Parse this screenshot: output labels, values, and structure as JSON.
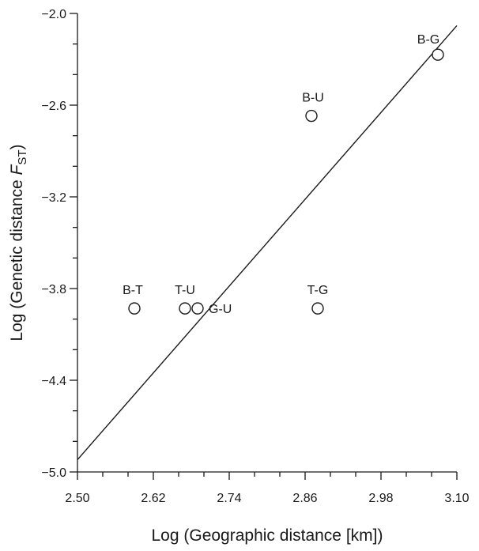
{
  "chart_data": {
    "type": "scatter",
    "xlabel": "Log (Geographic distance [km])",
    "ylabel": {
      "prefix": "Log (Genetic distance ",
      "symbol": "F",
      "subscript": "ST",
      "suffix": ")"
    },
    "xlim": [
      2.5,
      3.1
    ],
    "ylim": [
      -5.0,
      -2.0
    ],
    "x_ticks": [
      "2.50",
      "2.62",
      "2.74",
      "2.86",
      "2.98",
      "3.10"
    ],
    "y_ticks": [
      "−2.0",
      "−2.6",
      "−3.2",
      "−3.8",
      "−4.4",
      "−5.0"
    ],
    "x_minor_step": 0.04,
    "y_minor_step": 0.2,
    "grid": false,
    "points": [
      {
        "label": "B-G",
        "x": 3.07,
        "y": -2.27
      },
      {
        "label": "B-U",
        "x": 2.87,
        "y": -2.67
      },
      {
        "label": "B-T",
        "x": 2.59,
        "y": -3.93
      },
      {
        "label": "T-U",
        "x": 2.67,
        "y": -3.93
      },
      {
        "label": "G-U",
        "x": 2.69,
        "y": -3.93
      },
      {
        "label": "T-G",
        "x": 2.88,
        "y": -3.93
      }
    ],
    "trendline": {
      "x": [
        2.5,
        3.1
      ],
      "y": [
        -4.92,
        -2.08
      ]
    }
  }
}
